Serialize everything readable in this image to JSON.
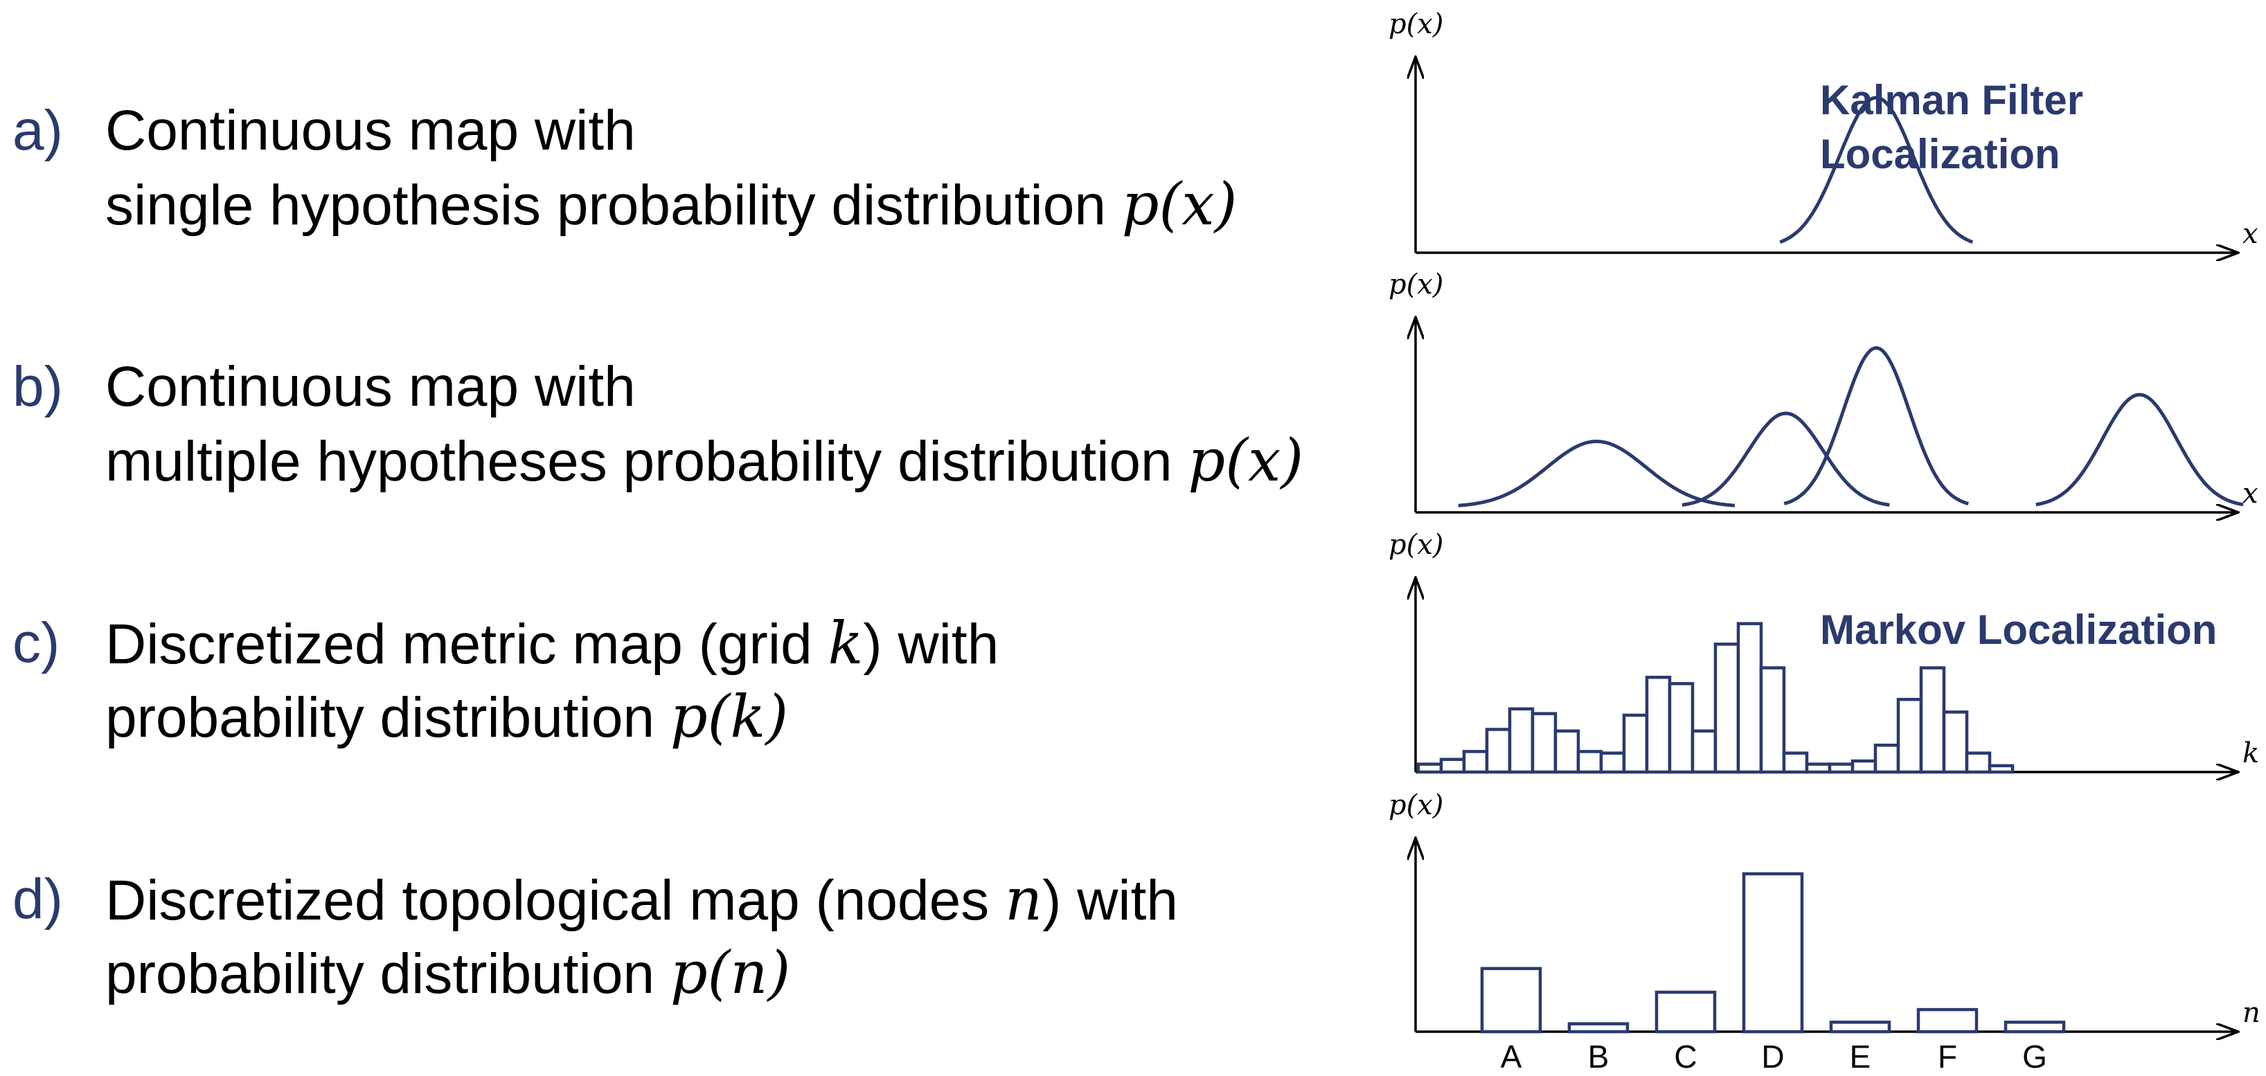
{
  "rows": [
    {
      "letter": "a)",
      "line1": "Continuous map with",
      "line2": "single hypothesis probability distribution",
      "line2_math": "p(x)",
      "ylabel": "p(x)",
      "xlabel": "x",
      "note": [
        "Kalman Filter",
        "Localization"
      ]
    },
    {
      "letter": "b)",
      "line1": "Continuous map with",
      "line2": "multiple hypotheses probability distribution",
      "line2_math": "p(x)",
      "ylabel": "p(x)",
      "xlabel": "x"
    },
    {
      "letter": "c)",
      "line1_pre": "Discretized metric map (grid",
      "line1_math": "k",
      "line1_post": ") with",
      "line2": "probability distribution",
      "line2_math": "p(k)",
      "ylabel": "p(x)",
      "xlabel": "k",
      "note": [
        "Markov Localization"
      ]
    },
    {
      "letter": "d)",
      "line1_pre": "Discretized topological map (nodes",
      "line1_math": "n",
      "line1_post": ") with",
      "line2": "probability distribution",
      "line2_math": "p(n)",
      "ylabel": "p(x)",
      "xlabel": "n",
      "node_labels": [
        "A",
        "B",
        "C",
        "D",
        "E",
        "F",
        "G"
      ]
    }
  ],
  "colors": {
    "accent": "#2b3a6e",
    "text": "#000000"
  },
  "data": {
    "gaussian_a": [
      {
        "mean": 0.56,
        "sd": 0.045,
        "peak": 0.8
      }
    ],
    "gaussians_b": [
      {
        "mean": 0.22,
        "sd": 0.06,
        "peak": 0.35
      },
      {
        "mean": 0.45,
        "sd": 0.045,
        "peak": 0.5
      },
      {
        "mean": 0.56,
        "sd": 0.04,
        "peak": 0.85
      },
      {
        "mean": 0.88,
        "sd": 0.045,
        "peak": 0.6
      }
    ],
    "histogram_c": [
      0.05,
      0.08,
      0.13,
      0.27,
      0.4,
      0.37,
      0.26,
      0.13,
      0.12,
      0.36,
      0.6,
      0.56,
      0.26,
      0.81,
      0.94,
      0.66,
      0.12,
      0.05,
      0.05,
      0.07,
      0.17,
      0.46,
      0.66,
      0.38,
      0.12,
      0.04
    ],
    "nodes_d": [
      0.4,
      0.05,
      0.25,
      1.0,
      0.06,
      0.14,
      0.06
    ]
  }
}
